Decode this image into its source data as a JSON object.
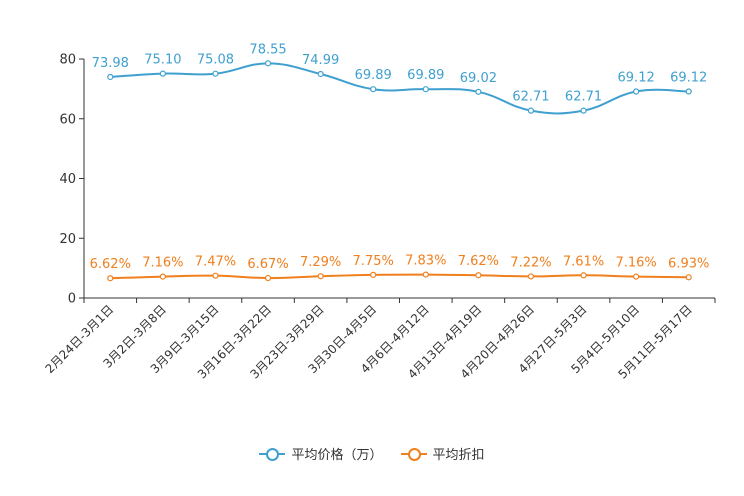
{
  "chart_data": {
    "type": "line",
    "categories": [
      "2月24日-3月1日",
      "3月2日-3月8日",
      "3月9日-3月15日",
      "3月16日-3月22日",
      "3月23日-3月29日",
      "3月30日-4月5日",
      "4月6日-4月12日",
      "4月13日-4月19日",
      "4月20日-4月26日",
      "4月27日-5月3日",
      "5月4日-5月10日",
      "5月11日-5月17日"
    ],
    "series": [
      {
        "name": "平均价格（万）",
        "color": "#3fa0d0",
        "values": [
          73.98,
          75.1,
          75.08,
          78.55,
          74.99,
          69.89,
          69.89,
          69.02,
          62.71,
          62.71,
          69.12,
          69.12
        ],
        "labels": [
          "73.98",
          "75.10",
          "75.08",
          "78.55",
          "74.99",
          "69.89",
          "69.89",
          "69.02",
          "62.71",
          "62.71",
          "69.12",
          "69.12"
        ]
      },
      {
        "name": "平均折扣",
        "color": "#f07f1d",
        "values": [
          6.62,
          7.16,
          7.47,
          6.67,
          7.29,
          7.75,
          7.83,
          7.62,
          7.22,
          7.61,
          7.16,
          6.93
        ],
        "labels": [
          "6.62%",
          "7.16%",
          "7.47%",
          "6.67%",
          "7.29%",
          "7.75%",
          "7.83%",
          "7.62%",
          "7.22%",
          "7.61%",
          "7.16%",
          "6.93%"
        ]
      }
    ],
    "yticks": [
      0,
      20,
      40,
      60,
      80
    ],
    "ylim": [
      0,
      80
    ],
    "title": "",
    "xlabel": "",
    "ylabel": "",
    "grid": false,
    "legend": "bottom-center"
  }
}
